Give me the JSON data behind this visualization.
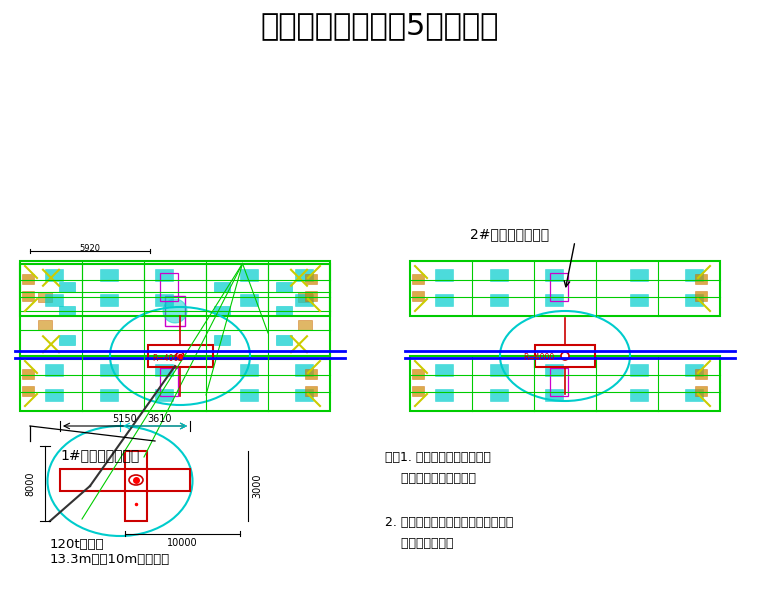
{
  "title": "吊装平面图（锌锅5片供货）",
  "title_fontsize": 22,
  "bg_color": "#ffffff",
  "label_1": "1#热镀锌机组锌锅",
  "label_2": "2#热镀锌机组锌锅",
  "label_3": "120t汽车吊\n13.3m杆，10m作业半径",
  "note_title": "注：",
  "note_1": "1. 吊车行走道路需回填、\n    夯实、面层施工完成；",
  "note_2": "2. 吊车走行路线上，无地下室孔洞，\n    全为实心基础。",
  "dim_5150": "5150",
  "dim_3610": "3610",
  "dim_8000": "8000",
  "dim_10000": "10000",
  "dim_3000": "3000"
}
